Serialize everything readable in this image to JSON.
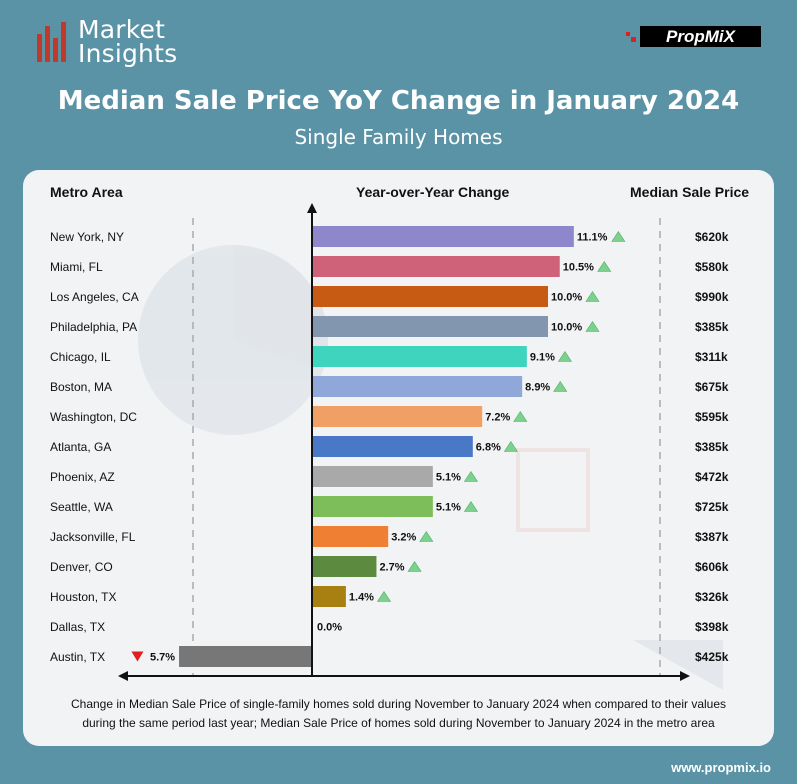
{
  "header": {
    "brand_line1": "Market",
    "brand_line2": "Insights",
    "partner_logo_text": "PropMiX",
    "title": "Median Sale Price YoY Change in January 2024",
    "subtitle": "Single Family Homes"
  },
  "columns": {
    "metro": "Metro Area",
    "change": "Year-over-Year Change",
    "price": "Median Sale Price"
  },
  "colors": {
    "background": "#5a93a5",
    "up_arrow": "#7dd08e",
    "down_arrow": "#e02020"
  },
  "chart_data": {
    "type": "bar",
    "orientation": "horizontal",
    "title": "Median Sale Price YoY Change in January 2024",
    "subtitle": "Single Family Homes",
    "xlabel": "Year-over-Year Change",
    "ylabel": "Metro Area",
    "xlim": [
      -7,
      14
    ],
    "categories": [
      "New York, NY",
      "Miami, FL",
      "Los Angeles, CA",
      "Philadelphia, PA",
      "Chicago, IL",
      "Boston, MA",
      "Washington, DC",
      "Atlanta, GA",
      "Phoenix, AZ",
      "Seattle, WA",
      "Jacksonville, FL",
      "Denver, CO",
      "Houston, TX",
      "Dallas, TX",
      "Austin, TX"
    ],
    "values": [
      11.1,
      10.5,
      10.0,
      10.0,
      9.1,
      8.9,
      7.2,
      6.8,
      5.1,
      5.1,
      3.2,
      2.7,
      1.4,
      0.0,
      -5.7
    ],
    "value_labels": [
      "11.1%",
      "10.5%",
      "10.0%",
      "10.0%",
      "9.1%",
      "8.9%",
      "7.2%",
      "6.8%",
      "5.1%",
      "5.1%",
      "3.2%",
      "2.7%",
      "1.4%",
      "0.0%",
      "5.7%"
    ],
    "colors": [
      "#8f87cc",
      "#cf6279",
      "#c75b14",
      "#8396b0",
      "#3ed4bd",
      "#8fa7d9",
      "#f0a065",
      "#4a78c8",
      "#a9a9a9",
      "#7dbd5a",
      "#ee7f33",
      "#5c8a3e",
      "#a88012",
      "#cccccc",
      "#777777"
    ],
    "median_sale_price": [
      "$620k",
      "$580k",
      "$990k",
      "$385k",
      "$311k",
      "$675k",
      "$595k",
      "$385k",
      "$472k",
      "$725k",
      "$387k",
      "$606k",
      "$326k",
      "$398k",
      "$425k"
    ],
    "grid": false
  },
  "footer": {
    "note_line1": "Change in Median Sale Price of single-family homes sold during November to January 2024 when compared to their values",
    "note_line2": "during the same period last year; Median Sale Price of homes sold during November to January 2024  in the metro area",
    "url": "www.propmix.io"
  }
}
